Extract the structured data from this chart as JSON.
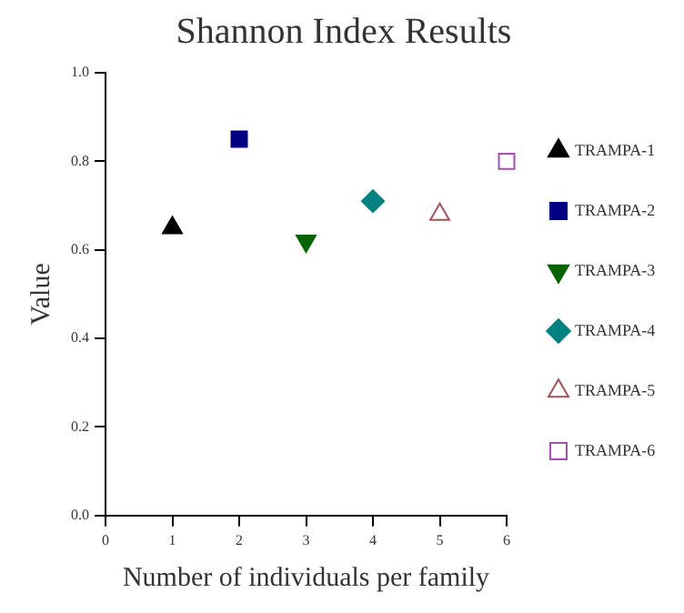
{
  "chart_data": {
    "type": "scatter",
    "title": "Shannon Index Results",
    "xlabel": "Number of individuals per family",
    "ylabel": "Value",
    "xlim": [
      0,
      6
    ],
    "xticks": [
      0,
      1,
      2,
      3,
      4,
      5,
      6
    ],
    "ylim": [
      0,
      1
    ],
    "yticks": [
      {
        "value": 0,
        "label": "0.0"
      },
      {
        "value": 0.2,
        "label": "0.2"
      },
      {
        "value": 0.4,
        "label": "0.4"
      },
      {
        "value": 0.6,
        "label": "0.6"
      },
      {
        "value": 0.8,
        "label": "0.8"
      },
      {
        "value": 1,
        "label": "1.0"
      }
    ],
    "grid": false,
    "legend": "right",
    "series": [
      {
        "name": "TRAMPA-1",
        "color": "#000000",
        "marker": "triangle",
        "x": [
          1
        ],
        "values": [
          0.65
        ]
      },
      {
        "name": "TRAMPA-2",
        "color": "#000080",
        "marker": "square",
        "x": [
          2
        ],
        "values": [
          0.85
        ]
      },
      {
        "name": "TRAMPA-3",
        "color": "#006400",
        "marker": "triangle-down",
        "x": [
          3
        ],
        "values": [
          0.62
        ]
      },
      {
        "name": "TRAMPA-4",
        "color": "#008080",
        "marker": "diamond",
        "x": [
          4
        ],
        "values": [
          0.71
        ]
      },
      {
        "name": "TRAMPA-5",
        "color": "#a0525a",
        "marker": "triangle-open",
        "x": [
          5
        ],
        "values": [
          0.68
        ]
      },
      {
        "name": "TRAMPA-6",
        "color": "#a050b0",
        "marker": "square-open",
        "x": [
          6
        ],
        "values": [
          0.8
        ]
      }
    ]
  }
}
